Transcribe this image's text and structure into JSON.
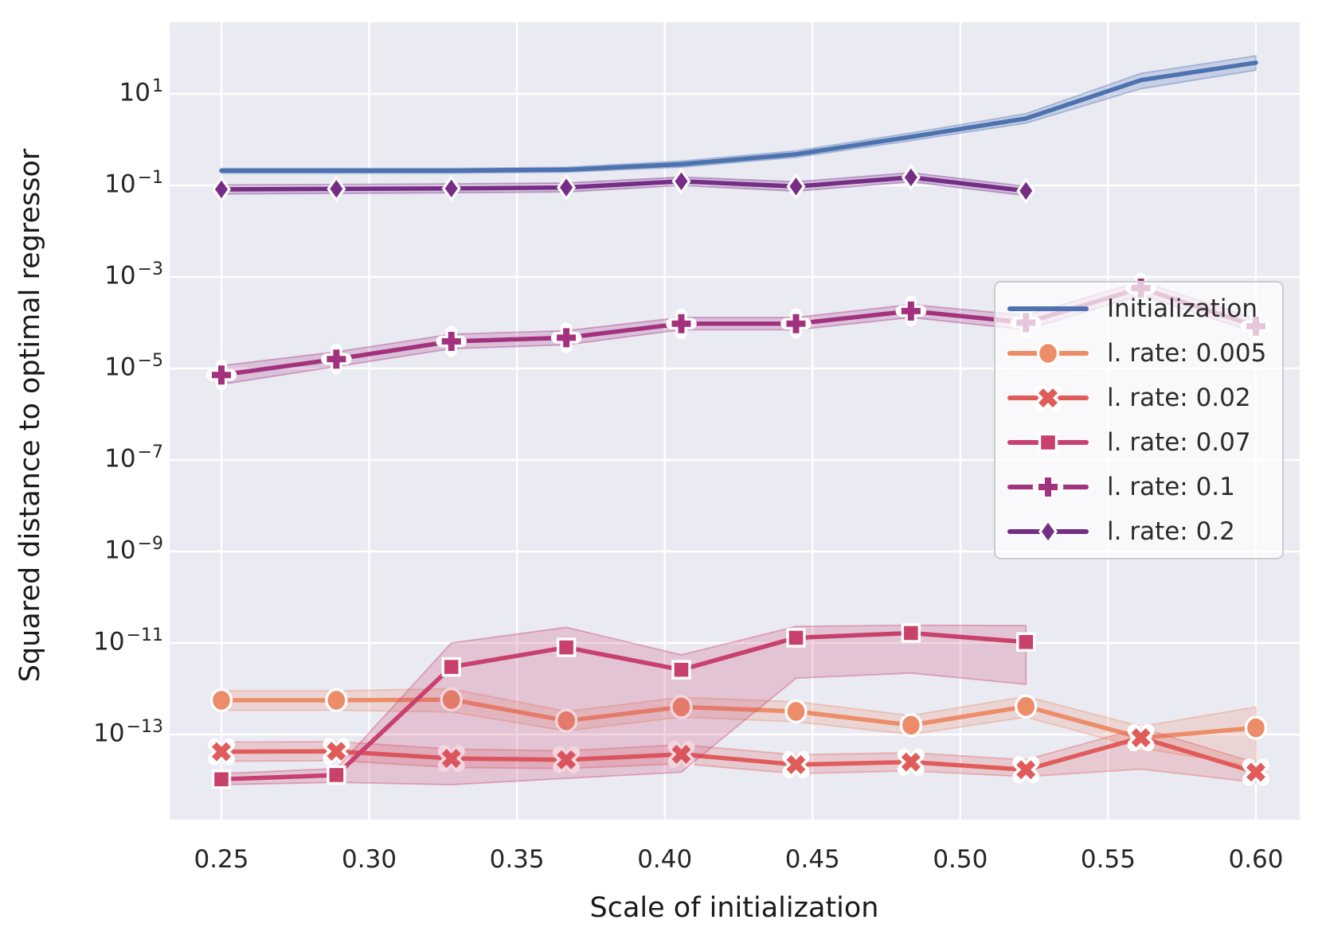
{
  "chart_data": {
    "type": "line",
    "title": "",
    "xlabel": "Scale of initialization",
    "ylabel": "Squared distance to optimal regressor",
    "grid": true,
    "background": "#EAEAF2",
    "gridline_color": "#FFFFFF",
    "legend_position": "center right",
    "x_tick_labels": [
      "0.25",
      "0.30",
      "0.35",
      "0.40",
      "0.45",
      "0.50",
      "0.55",
      "0.60"
    ],
    "x_tick_values": [
      0.25,
      0.3,
      0.35,
      0.4,
      0.45,
      0.5,
      0.55,
      0.6
    ],
    "y_tick_base": "10",
    "y_tick_exponents": [
      1,
      -1,
      -3,
      -5,
      -7,
      -9,
      -11,
      -13
    ],
    "xlim": [
      0.2325,
      0.6175
    ],
    "ylim_log10": [
      -14.86,
      2.57
    ],
    "x": [
      0.25,
      0.2889,
      0.3278,
      0.3667,
      0.4056,
      0.4444,
      0.4833,
      0.5222,
      0.5611,
      0.6
    ],
    "series": [
      {
        "name": "Initialization",
        "color": "#4C72B0",
        "marker": "none",
        "values": [
          0.21,
          0.21,
          0.21,
          0.22,
          0.29,
          0.48,
          1.15,
          2.9,
          20,
          48
        ],
        "lo": [
          0.185,
          0.185,
          0.185,
          0.195,
          0.25,
          0.41,
          0.95,
          2.3,
          13,
          33
        ],
        "hi": [
          0.235,
          0.235,
          0.235,
          0.25,
          0.34,
          0.57,
          1.4,
          3.7,
          28,
          68
        ]
      },
      {
        "name": "l. rate: 0.005",
        "color": "#EC8C69",
        "marker": "circle",
        "values": [
          5.6e-13,
          5.6e-13,
          5.8e-13,
          2e-13,
          4e-13,
          3.2e-13,
          1.6e-13,
          4.1e-13,
          8.5e-14,
          1.4e-13
        ],
        "lo": [
          3.4e-13,
          3.4e-13,
          3.1e-13,
          1.2e-13,
          2.4e-13,
          1.9e-13,
          1e-13,
          2.4e-13,
          5e-14,
          2e-14
        ],
        "hi": [
          9e-13,
          9e-13,
          1e-12,
          3.2e-13,
          6.5e-13,
          5.2e-13,
          2.6e-13,
          6.8e-13,
          1.5e-13,
          4e-13
        ]
      },
      {
        "name": "l. rate: 0.02",
        "color": "#E05C5B",
        "marker": "x",
        "values": [
          4.2e-14,
          4.3e-14,
          3e-14,
          2.8e-14,
          3.7e-14,
          2.2e-14,
          2.5e-14,
          1.7e-14,
          8.5e-14,
          1.5e-14
        ],
        "lo": [
          2.6e-14,
          2.7e-14,
          1.9e-14,
          1.8e-14,
          2.3e-14,
          1.4e-14,
          1.6e-14,
          1.2e-14,
          1.75e-14,
          9e-15
        ],
        "hi": [
          6.8e-14,
          7e-14,
          4.8e-14,
          4.4e-14,
          6e-14,
          3.6e-14,
          4e-14,
          2.8e-14,
          1.4e-13,
          2.4e-14
        ]
      },
      {
        "name": "l. rate: 0.07",
        "color": "#C8406C",
        "marker": "square",
        "values": [
          1.05e-14,
          1.3e-14,
          3e-12,
          8e-12,
          2.6e-12,
          1.3e-11,
          1.65e-11,
          1.05e-11
        ],
        "lo": [
          8e-15,
          9e-15,
          8e-15,
          1.1e-14,
          1.5e-14,
          1.7e-12,
          2.2e-12,
          1.25e-12
        ],
        "hi": [
          1.4e-14,
          1.8e-14,
          1e-11,
          2.2e-11,
          5.5e-12,
          2.3e-11,
          2.45e-11,
          2.4e-11
        ]
      },
      {
        "name": "l. rate: 0.1",
        "color": "#A3327E",
        "marker": "plus",
        "values": [
          7.2e-06,
          1.6e-05,
          3.9e-05,
          4.7e-05,
          9.5e-05,
          9.5e-05,
          0.00018,
          0.0001,
          0.00057,
          8.4e-05
        ],
        "lo": [
          4.5e-06,
          1.1e-05,
          2.7e-05,
          3.3e-05,
          7e-05,
          7e-05,
          0.00013,
          7e-05,
          0.0004,
          6e-05
        ],
        "hi": [
          1.15e-05,
          2.3e-05,
          5.6e-05,
          6.7e-05,
          0.00013,
          0.00013,
          0.00025,
          0.000145,
          0.0008,
          0.00012
        ]
      },
      {
        "name": "l. rate: 0.2",
        "color": "#762D86",
        "marker": "diamond",
        "values": [
          0.082,
          0.084,
          0.086,
          0.09,
          0.123,
          0.095,
          0.15,
          0.076
        ],
        "lo": [
          0.065,
          0.067,
          0.069,
          0.072,
          0.1,
          0.075,
          0.12,
          0.06
        ],
        "hi": [
          0.103,
          0.105,
          0.108,
          0.113,
          0.152,
          0.12,
          0.19,
          0.095
        ]
      }
    ]
  }
}
